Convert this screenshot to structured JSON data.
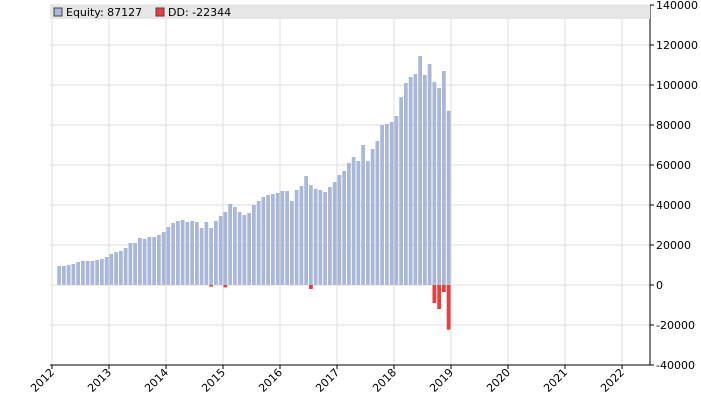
{
  "chart_data": {
    "type": "bar",
    "title": "",
    "xlabel": "",
    "ylabel": "",
    "ylim": [
      -40000,
      140000
    ],
    "y_ticks": [
      -40000,
      -20000,
      0,
      20000,
      40000,
      60000,
      80000,
      100000,
      120000,
      140000
    ],
    "x_ticks": [
      "2012",
      "2013",
      "2014",
      "2015",
      "2016",
      "2017",
      "2018",
      "2019",
      "2020",
      "2021",
      "2022"
    ],
    "grid": true,
    "legend_position": "top-left",
    "legend": {
      "equity_label": "Equity: 87127",
      "dd_label": "DD: -22344"
    },
    "colors": {
      "equity": "#a9b8d8",
      "drawdown": "#ee3b3b",
      "grid": "#dddddd",
      "legend_bg": "#e6e6e6"
    },
    "series": [
      {
        "name": "Equity",
        "start": "2012-02",
        "values": [
          9500,
          9500,
          10000,
          10500,
          11500,
          12000,
          12000,
          12000,
          12500,
          13000,
          14000,
          15500,
          16500,
          17000,
          18500,
          21000,
          21000,
          23500,
          23000,
          24000,
          24000,
          25000,
          26500,
          29000,
          31000,
          32000,
          32500,
          31500,
          32000,
          31500,
          28500,
          31500,
          28500,
          32000,
          34500,
          36500,
          40500,
          39000,
          36500,
          35000,
          36000,
          40000,
          42000,
          44000,
          45000,
          45500,
          46000,
          47000,
          47000,
          42000,
          47500,
          49500,
          54500,
          50000,
          48000,
          47500,
          46500,
          49000,
          51500,
          55000,
          57000,
          61000,
          64000,
          62000,
          70000,
          62000,
          68000,
          72000,
          80000,
          80500,
          81500,
          84500,
          94000,
          101000,
          104000,
          105500,
          114500,
          105000,
          110500,
          101500,
          98500,
          107000,
          87127
        ]
      },
      {
        "name": "DD",
        "start": "2012-02",
        "values": [
          0,
          0,
          0,
          0,
          0,
          0,
          0,
          0,
          0,
          0,
          0,
          0,
          0,
          0,
          0,
          0,
          0,
          0,
          0,
          0,
          0,
          0,
          0,
          0,
          0,
          0,
          0,
          0,
          0,
          0,
          0,
          0,
          -800,
          0,
          0,
          -1200,
          0,
          0,
          0,
          0,
          0,
          0,
          0,
          0,
          0,
          0,
          0,
          0,
          0,
          0,
          0,
          0,
          0,
          -2000,
          0,
          0,
          0,
          0,
          0,
          0,
          0,
          0,
          0,
          0,
          0,
          0,
          0,
          0,
          0,
          0,
          0,
          0,
          0,
          0,
          0,
          0,
          0,
          0,
          0,
          -9000,
          -12000,
          -3500,
          -22344
        ]
      }
    ]
  }
}
